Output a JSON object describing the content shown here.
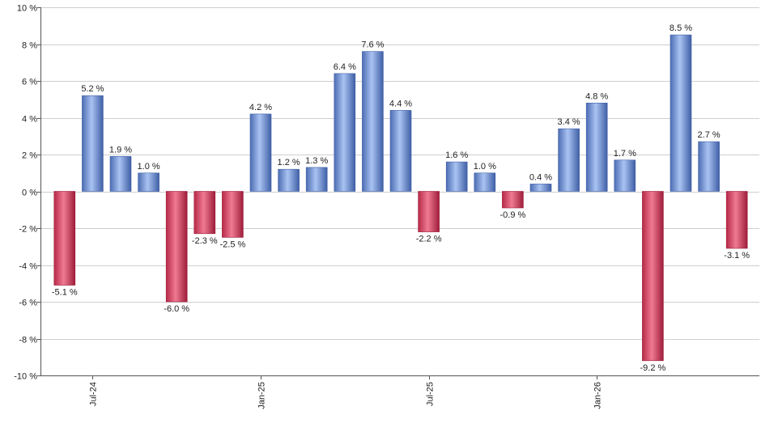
{
  "chart_data": {
    "type": "bar",
    "title": "",
    "xlabel": "",
    "ylabel": "",
    "ylim": [
      -10,
      10
    ],
    "y_ticks": [
      10,
      8,
      6,
      4,
      2,
      0,
      -2,
      -4,
      -6,
      -8,
      -10
    ],
    "y_tick_suffix": " %",
    "grid": true,
    "x_tick_labels": [
      "Jul-24",
      "Jan-25",
      "Jul-25",
      "Jan-26"
    ],
    "x_tick_label_bar_index": [
      1,
      7,
      13,
      19
    ],
    "values": [
      -5.1,
      5.2,
      1.9,
      1.0,
      -6.0,
      -2.3,
      -2.5,
      4.2,
      1.2,
      1.3,
      6.4,
      7.6,
      4.4,
      -2.2,
      1.6,
      1.0,
      -0.9,
      0.4,
      3.4,
      4.8,
      1.7,
      -9.2,
      8.5,
      2.7,
      -3.1
    ],
    "value_labels": [
      "-5.1 %",
      "5.2 %",
      "1.9 %",
      "1.0 %",
      "-6.0 %",
      "-2.3 %",
      "-2.5 %",
      "4.2 %",
      "1.2 %",
      "1.3 %",
      "6.4 %",
      "7.6 %",
      "4.4 %",
      "-2.2 %",
      "1.6 %",
      "1.0 %",
      "-0.9 %",
      "0.4 %",
      "3.4 %",
      "4.8 %",
      "1.7 %",
      "-9.2 %",
      "8.5 %",
      "2.7 %",
      "-3.1 %"
    ],
    "colors": {
      "positive": "#6f93d8",
      "positive_light": "#a9c3f2",
      "positive_dark": "#3f5fa6",
      "negative": "#d8405e",
      "negative_light": "#f07a92",
      "negative_dark": "#9e1d3a"
    }
  }
}
